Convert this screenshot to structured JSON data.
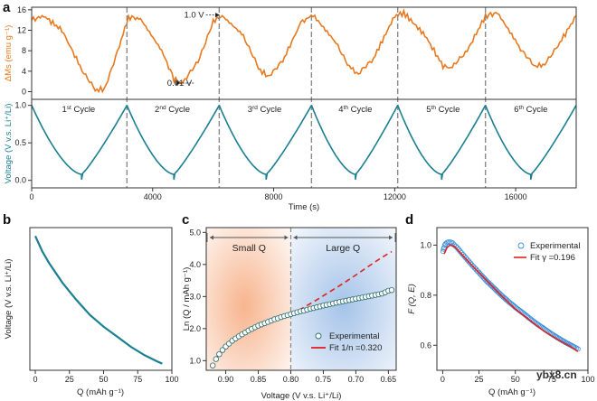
{
  "colors": {
    "orange": "#e8791e",
    "teal": "#1a7f8f",
    "blue_marker": "#3d8fd8",
    "red": "#e02020",
    "dash": "#8a8a8a"
  },
  "chart_data": [
    {
      "id": "a_top",
      "panel": "a",
      "type": "line",
      "ylabel": "ΔMs (emu g⁻¹)",
      "ylim": [
        -1.5,
        16.5
      ],
      "yticks": [
        0,
        4,
        8,
        12,
        16
      ],
      "xlim": [
        0,
        18000
      ],
      "series": [
        {
          "name": "ΔMs",
          "points": [
            [
              0,
              14
            ],
            [
              400,
              14.8
            ],
            [
              1000,
              12
            ],
            [
              1600,
              5
            ],
            [
              2100,
              0.3
            ],
            [
              2400,
              0.5
            ],
            [
              2900,
              9
            ],
            [
              3200,
              14.6
            ],
            [
              3600,
              14.2
            ],
            [
              4300,
              8
            ],
            [
              4700,
              2.5
            ],
            [
              5000,
              1.5
            ],
            [
              5500,
              6
            ],
            [
              6000,
              13.8
            ],
            [
              6300,
              14.8
            ],
            [
              7000,
              11
            ],
            [
              7500,
              4.5
            ],
            [
              7800,
              3
            ],
            [
              8300,
              6
            ],
            [
              8900,
              13.5
            ],
            [
              9300,
              15
            ],
            [
              10000,
              10
            ],
            [
              10500,
              5
            ],
            [
              10800,
              3.3
            ],
            [
              11300,
              6.5
            ],
            [
              12000,
              14.8
            ],
            [
              12300,
              15.4
            ],
            [
              13000,
              11
            ],
            [
              13600,
              5
            ],
            [
              13900,
              4.6
            ],
            [
              14400,
              8
            ],
            [
              15000,
              14.8
            ],
            [
              15400,
              15.4
            ],
            [
              16100,
              9
            ],
            [
              16600,
              5
            ],
            [
              16900,
              5.2
            ],
            [
              17400,
              9
            ],
            [
              18000,
              14.8
            ]
          ]
        }
      ],
      "annotations": [
        {
          "text": "1.0 V",
          "x": 6250,
          "y": 14.8,
          "tx": 5700,
          "ty": 14.8,
          "anchor": "end"
        },
        {
          "text": "0.01 V",
          "x": 4950,
          "y": 1.5,
          "tx": 5300,
          "ty": 1.5,
          "anchor": "end"
        }
      ]
    },
    {
      "id": "a_bottom",
      "panel": "a",
      "type": "line",
      "ylabel": "Voltage (V v.s. Li⁺/Li)",
      "xlabel": "Time (s)",
      "xlim": [
        0,
        18000
      ],
      "xticks": [
        0,
        4000,
        8000,
        12000,
        16000
      ],
      "ylim": [
        -0.1,
        1.08
      ],
      "yticks": [
        0.0,
        0.5,
        1.0
      ],
      "cycle_labels": [
        {
          "num": "1",
          "sup": "st",
          "rest": " Cycle",
          "x": 1550
        },
        {
          "num": "2",
          "sup": "nd",
          "rest": " Cycle",
          "x": 4650
        },
        {
          "num": "3",
          "sup": "rd",
          "rest": " Cycle",
          "x": 7700
        },
        {
          "num": "4",
          "sup": "th",
          "rest": " Cycle",
          "x": 10700
        },
        {
          "num": "5",
          "sup": "th",
          "rest": " Cycle",
          "x": 13600
        },
        {
          "num": "6",
          "sup": "th",
          "rest": " Cycle",
          "x": 16500
        }
      ],
      "cycle_boundaries": [
        3150,
        6200,
        9250,
        12100,
        15000
      ],
      "segments": [
        {
          "start": 0,
          "min": 1650,
          "end": 3150
        },
        {
          "start": 3150,
          "min": 4700,
          "end": 6200
        },
        {
          "start": 6200,
          "min": 7750,
          "end": 9250
        },
        {
          "start": 9250,
          "min": 10700,
          "end": 12100
        },
        {
          "start": 12100,
          "min": 13550,
          "end": 15000
        },
        {
          "start": 15000,
          "min": 16500,
          "end": 18000
        }
      ],
      "v_start": 1.0,
      "v_min": 0.01,
      "v_knee": 0.08
    },
    {
      "id": "b",
      "panel": "b",
      "type": "line",
      "xlabel": "Q (mAh g⁻¹)",
      "ylabel": "Voltage (V v.s. Li⁺/Li)",
      "xlim": [
        -4,
        100
      ],
      "xticks": [
        0,
        25,
        50,
        75,
        100
      ],
      "ylim": [
        0.17,
        1.02
      ],
      "series": [
        {
          "name": "voltage",
          "points": [
            [
              0,
              0.97
            ],
            [
              5,
              0.88
            ],
            [
              10,
              0.81
            ],
            [
              20,
              0.69
            ],
            [
              30,
              0.59
            ],
            [
              40,
              0.5
            ],
            [
              50,
              0.43
            ],
            [
              60,
              0.37
            ],
            [
              70,
              0.31
            ],
            [
              80,
              0.26
            ],
            [
              90,
              0.22
            ],
            [
              93,
              0.21
            ]
          ]
        }
      ]
    },
    {
      "id": "c",
      "panel": "c",
      "type": "scatter",
      "xlabel": "Voltage (V v.s. Li⁺/Li)",
      "ylabel": "Ln (Q / mAh g⁻¹)",
      "xlim": [
        0.93,
        0.638
      ],
      "xticks": [
        0.9,
        0.85,
        0.8,
        0.75,
        0.7,
        0.65
      ],
      "xtick_labels": [
        "0.90",
        "0.85",
        "0.80",
        "0.75",
        "0.70",
        "0.65"
      ],
      "ylim": [
        0.7,
        5.15
      ],
      "yticks": [
        1.0,
        2.0,
        3.0,
        4.0,
        5.0
      ],
      "ytick_labels": [
        "1.0",
        "2.0",
        "3.0",
        "4.0",
        "5.0"
      ],
      "boundary_x": 0.8,
      "regions": [
        {
          "label": "Small Q",
          "color": "#f6a77a"
        },
        {
          "label": "Large Q",
          "color": "#9bbde6"
        }
      ],
      "experimental": [
        [
          0.92,
          0.85
        ],
        [
          0.915,
          1.05
        ],
        [
          0.91,
          1.2
        ],
        [
          0.905,
          1.33
        ],
        [
          0.9,
          1.44
        ],
        [
          0.895,
          1.53
        ],
        [
          0.89,
          1.62
        ],
        [
          0.885,
          1.69
        ],
        [
          0.88,
          1.76
        ],
        [
          0.875,
          1.82
        ],
        [
          0.87,
          1.88
        ],
        [
          0.865,
          1.94
        ],
        [
          0.86,
          1.99
        ],
        [
          0.855,
          2.04
        ],
        [
          0.85,
          2.09
        ],
        [
          0.845,
          2.13
        ],
        [
          0.84,
          2.17
        ],
        [
          0.835,
          2.21
        ],
        [
          0.83,
          2.25
        ],
        [
          0.825,
          2.29
        ],
        [
          0.82,
          2.32
        ],
        [
          0.815,
          2.36
        ],
        [
          0.81,
          2.39
        ],
        [
          0.805,
          2.42
        ],
        [
          0.8,
          2.45
        ],
        [
          0.795,
          2.48
        ],
        [
          0.79,
          2.51
        ],
        [
          0.785,
          2.54
        ],
        [
          0.78,
          2.56
        ],
        [
          0.775,
          2.59
        ],
        [
          0.77,
          2.62
        ],
        [
          0.765,
          2.64
        ],
        [
          0.76,
          2.67
        ],
        [
          0.755,
          2.69
        ],
        [
          0.75,
          2.72
        ],
        [
          0.745,
          2.74
        ],
        [
          0.74,
          2.76
        ],
        [
          0.735,
          2.78
        ],
        [
          0.73,
          2.81
        ],
        [
          0.725,
          2.83
        ],
        [
          0.72,
          2.85
        ],
        [
          0.715,
          2.87
        ],
        [
          0.71,
          2.89
        ],
        [
          0.705,
          2.91
        ],
        [
          0.7,
          2.93
        ],
        [
          0.695,
          2.95
        ],
        [
          0.69,
          2.97
        ],
        [
          0.685,
          2.99
        ],
        [
          0.68,
          3.01
        ],
        [
          0.675,
          3.03
        ],
        [
          0.67,
          3.05
        ],
        [
          0.665,
          3.07
        ],
        [
          0.66,
          3.09
        ],
        [
          0.655,
          3.13
        ],
        [
          0.65,
          3.18
        ],
        [
          0.645,
          3.2
        ]
      ],
      "fit_solid": [
        [
          0.918,
          1.0
        ],
        [
          0.9,
          1.45
        ],
        [
          0.88,
          1.78
        ],
        [
          0.86,
          2.01
        ],
        [
          0.84,
          2.19
        ],
        [
          0.82,
          2.33
        ],
        [
          0.8,
          2.45
        ]
      ],
      "fit_dashed": [
        [
          0.8,
          2.45
        ],
        [
          0.78,
          2.66
        ],
        [
          0.76,
          2.9
        ],
        [
          0.74,
          3.15
        ],
        [
          0.72,
          3.4
        ],
        [
          0.7,
          3.67
        ],
        [
          0.68,
          3.95
        ],
        [
          0.66,
          4.22
        ],
        [
          0.645,
          4.4
        ]
      ],
      "legend": [
        {
          "kind": "marker",
          "label": "Experimental"
        },
        {
          "kind": "line",
          "label": "Fit 1/n =0.320"
        }
      ]
    },
    {
      "id": "d",
      "panel": "d",
      "type": "scatter",
      "xlabel": "Q (mAh g⁻¹)",
      "ylabel": "F (Q, E)",
      "xlim": [
        -4,
        100
      ],
      "xticks": [
        0,
        25,
        50,
        75,
        100
      ],
      "ylim": [
        0.5,
        1.07
      ],
      "yticks": [
        0.6,
        0.8,
        1.0
      ],
      "ytick_labels": [
        "0.6",
        "0.8",
        "1.0"
      ],
      "experimental": [
        [
          0.3,
          0.975
        ],
        [
          0.7,
          0.985
        ],
        [
          1,
          0.99
        ],
        [
          1.5,
          1.0
        ],
        [
          2,
          1.005
        ],
        [
          3,
          1.01
        ],
        [
          4,
          1.012
        ],
        [
          5,
          1.012
        ],
        [
          6,
          1.01
        ],
        [
          7,
          1.008
        ],
        [
          8,
          1.0
        ],
        [
          10,
          0.99
        ],
        [
          12,
          0.975
        ],
        [
          15,
          0.955
        ],
        [
          18,
          0.935
        ],
        [
          21,
          0.915
        ],
        [
          25,
          0.89
        ],
        [
          30,
          0.858
        ],
        [
          35,
          0.83
        ],
        [
          40,
          0.802
        ],
        [
          45,
          0.776
        ],
        [
          50,
          0.752
        ],
        [
          55,
          0.73
        ],
        [
          60,
          0.707
        ],
        [
          65,
          0.685
        ],
        [
          70,
          0.665
        ],
        [
          75,
          0.645
        ],
        [
          80,
          0.627
        ],
        [
          85,
          0.61
        ],
        [
          90,
          0.595
        ],
        [
          93,
          0.585
        ]
      ],
      "fit": [
        [
          1,
          0.965
        ],
        [
          3,
          0.99
        ],
        [
          5,
          1.0
        ],
        [
          8,
          0.995
        ],
        [
          12,
          0.97
        ],
        [
          20,
          0.92
        ],
        [
          30,
          0.86
        ],
        [
          40,
          0.8
        ],
        [
          50,
          0.745
        ],
        [
          60,
          0.7
        ],
        [
          70,
          0.655
        ],
        [
          80,
          0.62
        ],
        [
          88,
          0.595
        ],
        [
          93,
          0.575
        ]
      ],
      "legend": [
        {
          "kind": "marker",
          "label": "Experimental"
        },
        {
          "kind": "line",
          "label": "Fit γ =0.196"
        }
      ]
    }
  ],
  "panel_letters": {
    "a": "a",
    "b": "b",
    "c": "c",
    "d": "d"
  },
  "watermark": "ybx8.cn"
}
